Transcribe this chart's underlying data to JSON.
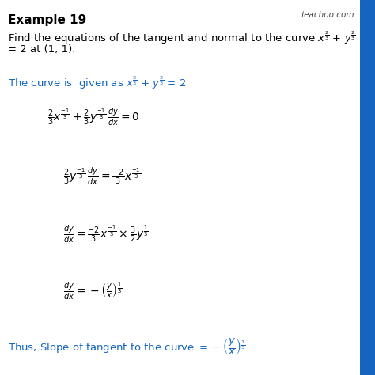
{
  "title": "Example 19",
  "watermark": "teachoo.com",
  "bg_color": "#ffffff",
  "text_color": "#000000",
  "blue_color": "#1565C0",
  "border_color": "#1565C0",
  "title_fontsize": 11,
  "body_fontsize": 9.5,
  "math_fontsize": 10,
  "small_fontsize": 8.5
}
